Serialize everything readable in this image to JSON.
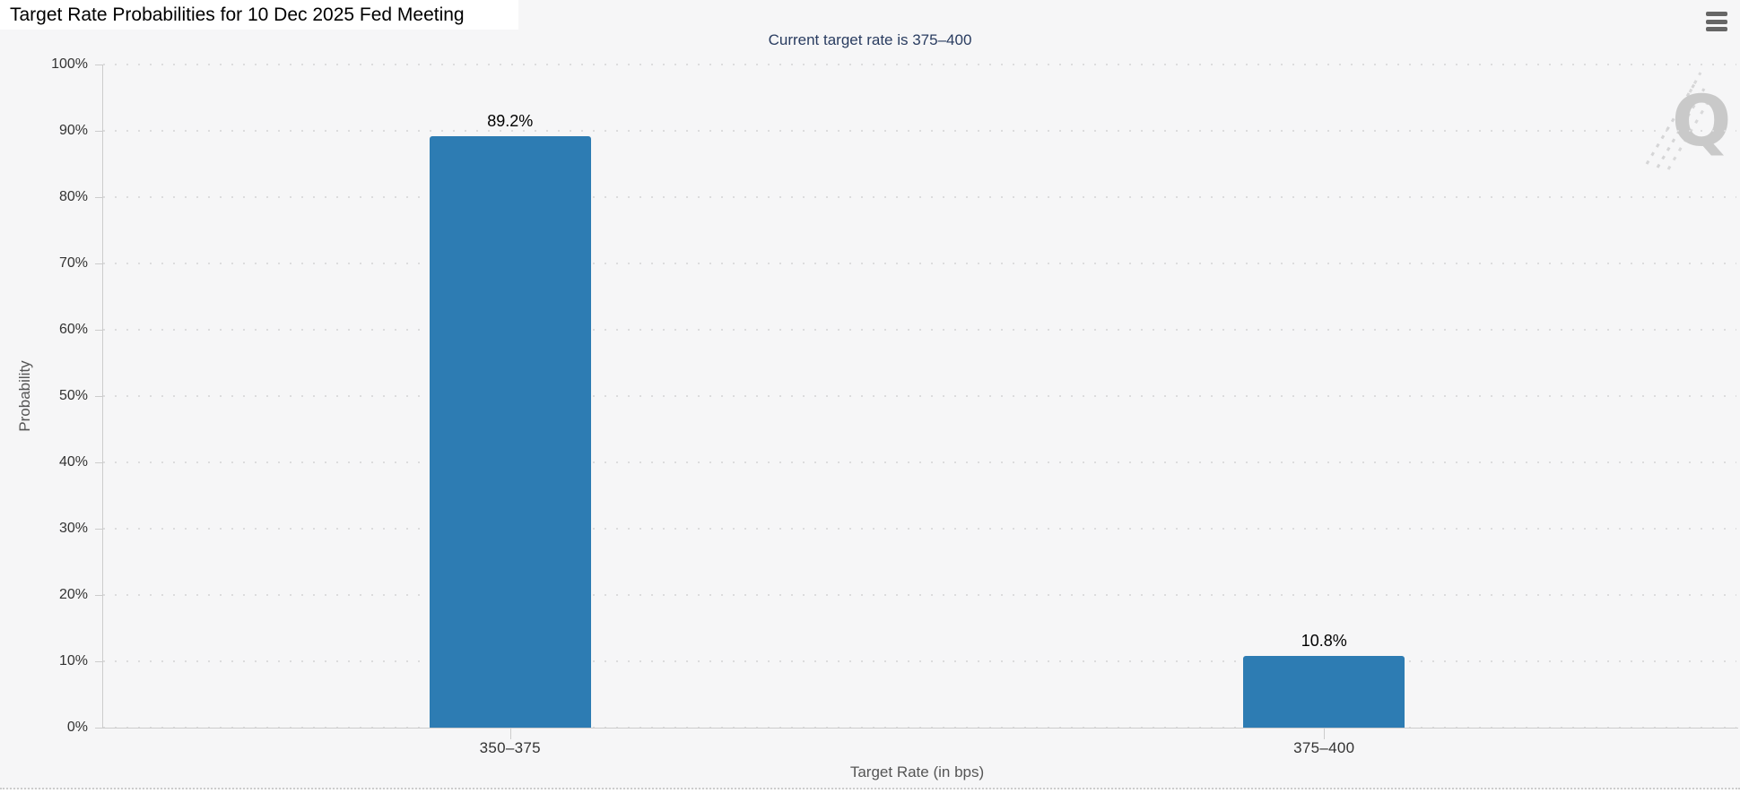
{
  "header": {
    "title": "Target Rate Probabilities for 10 Dec 2025 Fed Meeting",
    "menu_icon": "hamburger-menu-icon"
  },
  "watermark": {
    "letter": "Q"
  },
  "colors": {
    "bar": "#2d7cb3",
    "subtitle_text": "#293c60",
    "plot_background": "#f6f6f7",
    "axis": "#cccccc",
    "grid_dots": "#dcdcdd"
  },
  "chart_data": {
    "type": "bar",
    "title": "Target Rate Probabilities for 10 Dec 2025 Fed Meeting",
    "subtitle": "Current target rate is 375–400",
    "categories": [
      "350–375",
      "375–400"
    ],
    "values": [
      89.2,
      10.8
    ],
    "value_suffix": "%",
    "xlabel": "Target Rate (in bps)",
    "ylabel": "Probability",
    "ylim": [
      0,
      100
    ],
    "ytick_labels": [
      "0%",
      "10%",
      "20%",
      "30%",
      "40%",
      "50%",
      "60%",
      "70%",
      "80%",
      "90%",
      "100%"
    ],
    "grid": "horizontal-dotted",
    "legend": "none"
  }
}
